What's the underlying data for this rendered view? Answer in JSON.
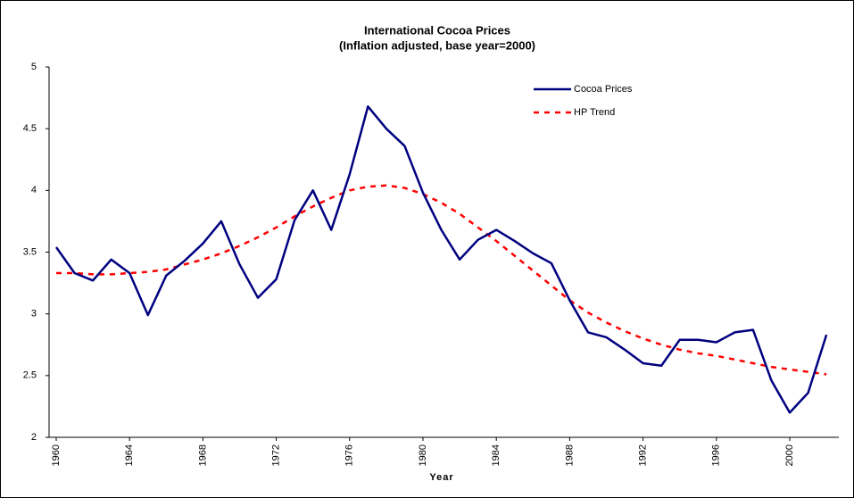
{
  "chart_data": {
    "type": "line",
    "title": "International Cocoa Prices",
    "subtitle": "(Inflation adjusted, base year=2000)",
    "x_label": "Year",
    "categories": [
      "1960",
      null,
      null,
      null,
      "1964",
      null,
      null,
      null,
      "1968",
      null,
      null,
      null,
      "1972",
      null,
      null,
      null,
      "1976",
      null,
      null,
      null,
      "1980",
      null,
      null,
      null,
      "1984",
      null,
      null,
      null,
      "1988",
      null,
      null,
      null,
      "1992",
      null,
      null,
      null,
      "1996",
      null,
      null,
      null,
      "2000",
      null,
      null
    ],
    "series": [
      {
        "name": "Cocoa Prices",
        "color": "#000080",
        "dash": false,
        "values": [
          3.54,
          3.33,
          3.27,
          3.44,
          3.33,
          2.99,
          3.31,
          3.43,
          3.57,
          3.75,
          3.4,
          3.13,
          3.28,
          3.76,
          4.0,
          3.68,
          4.13,
          4.68,
          4.5,
          4.36,
          3.98,
          3.68,
          3.44,
          3.6,
          3.68,
          3.59,
          3.49,
          3.41,
          3.11,
          2.85,
          2.81,
          2.71,
          2.6,
          2.58,
          2.79,
          2.79,
          2.77,
          2.85,
          2.87,
          2.46,
          2.2,
          2.36,
          2.83
        ]
      },
      {
        "name": "HP Trend",
        "color": "#ff0000",
        "dash": true,
        "values": [
          3.33,
          3.33,
          3.32,
          3.32,
          3.33,
          3.34,
          3.36,
          3.4,
          3.44,
          3.49,
          3.55,
          3.62,
          3.7,
          3.79,
          3.87,
          3.94,
          4.0,
          4.03,
          4.04,
          4.02,
          3.97,
          3.9,
          3.81,
          3.7,
          3.59,
          3.47,
          3.35,
          3.23,
          3.11,
          3.01,
          2.93,
          2.86,
          2.8,
          2.75,
          2.71,
          2.68,
          2.66,
          2.63,
          2.6,
          2.57,
          2.55,
          2.53,
          2.51
        ]
      }
    ],
    "ylim": [
      2,
      5
    ],
    "yticks": [
      2,
      2.5,
      3,
      3.5,
      4,
      4.5,
      5
    ],
    "grid": false,
    "legend": "top-right"
  }
}
